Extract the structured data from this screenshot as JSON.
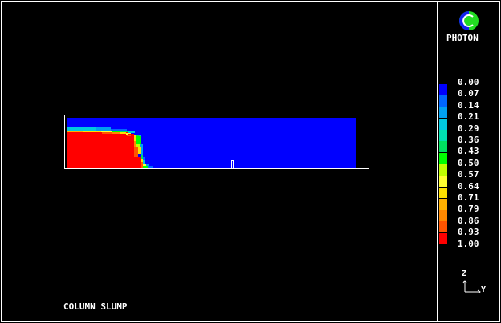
{
  "title": "COLUMN SLUMP",
  "logo": {
    "text": "PHOTON"
  },
  "legend": {
    "labels": [
      "0.00",
      "0.07",
      "0.14",
      "0.21",
      "0.29",
      "0.36",
      "0.43",
      "0.50",
      "0.57",
      "0.64",
      "0.71",
      "0.79",
      "0.86",
      "0.93",
      "1.00"
    ],
    "colors": [
      "#0000ff",
      "#0066ff",
      "#00a0f0",
      "#00c8e0",
      "#00e0b0",
      "#00e060",
      "#00ff00",
      "#c0ff00",
      "#ffff30",
      "#ffe000",
      "#ffb000",
      "#ff8800",
      "#ff5500",
      "#ff0000"
    ]
  },
  "axes": {
    "vertical": "Z",
    "horizontal": "Y"
  }
}
